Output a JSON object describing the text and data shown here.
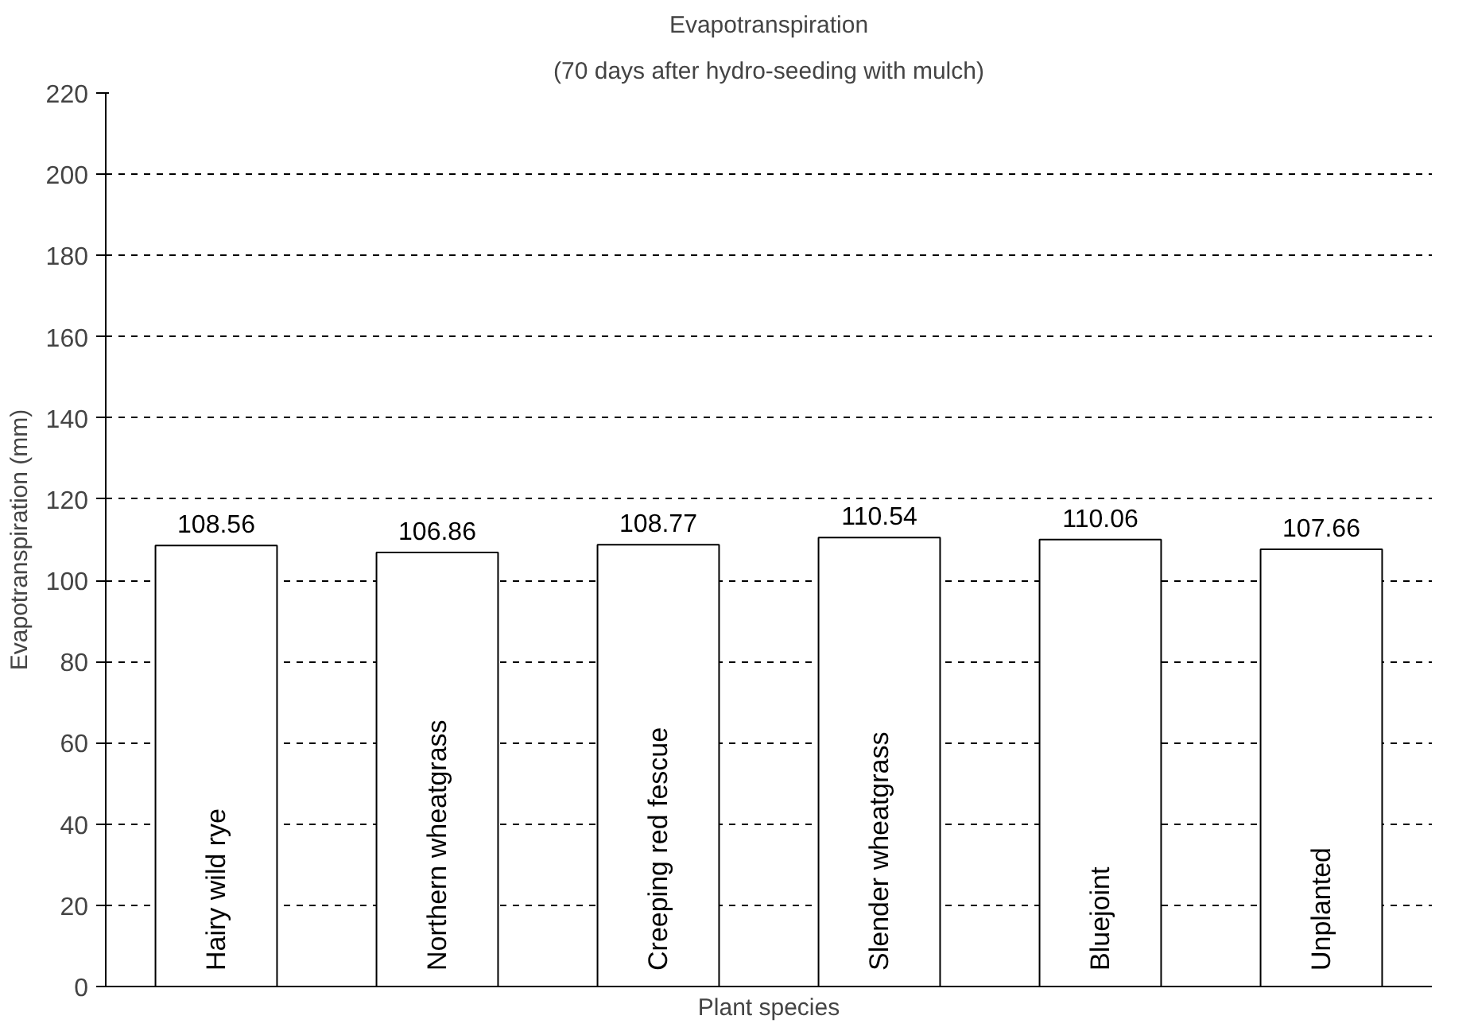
{
  "chart_data": {
    "type": "bar",
    "title": "Evapotranspiration",
    "subtitle": "(70 days after hydro-seeding with mulch)",
    "xlabel": "Plant species",
    "ylabel": "Evapotranspiration (mm)",
    "categories": [
      "Hairy wild rye",
      "Northern wheatgrass",
      "Creeping red fescue",
      "Slender wheatgrass",
      "Bluejoint",
      "Unplanted"
    ],
    "values": [
      108.56,
      106.86,
      108.77,
      110.54,
      110.06,
      107.66
    ],
    "color": "#ffffff",
    "ylim": [
      0,
      220
    ],
    "yticks": [
      0,
      20,
      40,
      60,
      80,
      100,
      120,
      140,
      160,
      180,
      200,
      220
    ],
    "grid": "y",
    "data_labels": true,
    "tick_labels": "y"
  }
}
